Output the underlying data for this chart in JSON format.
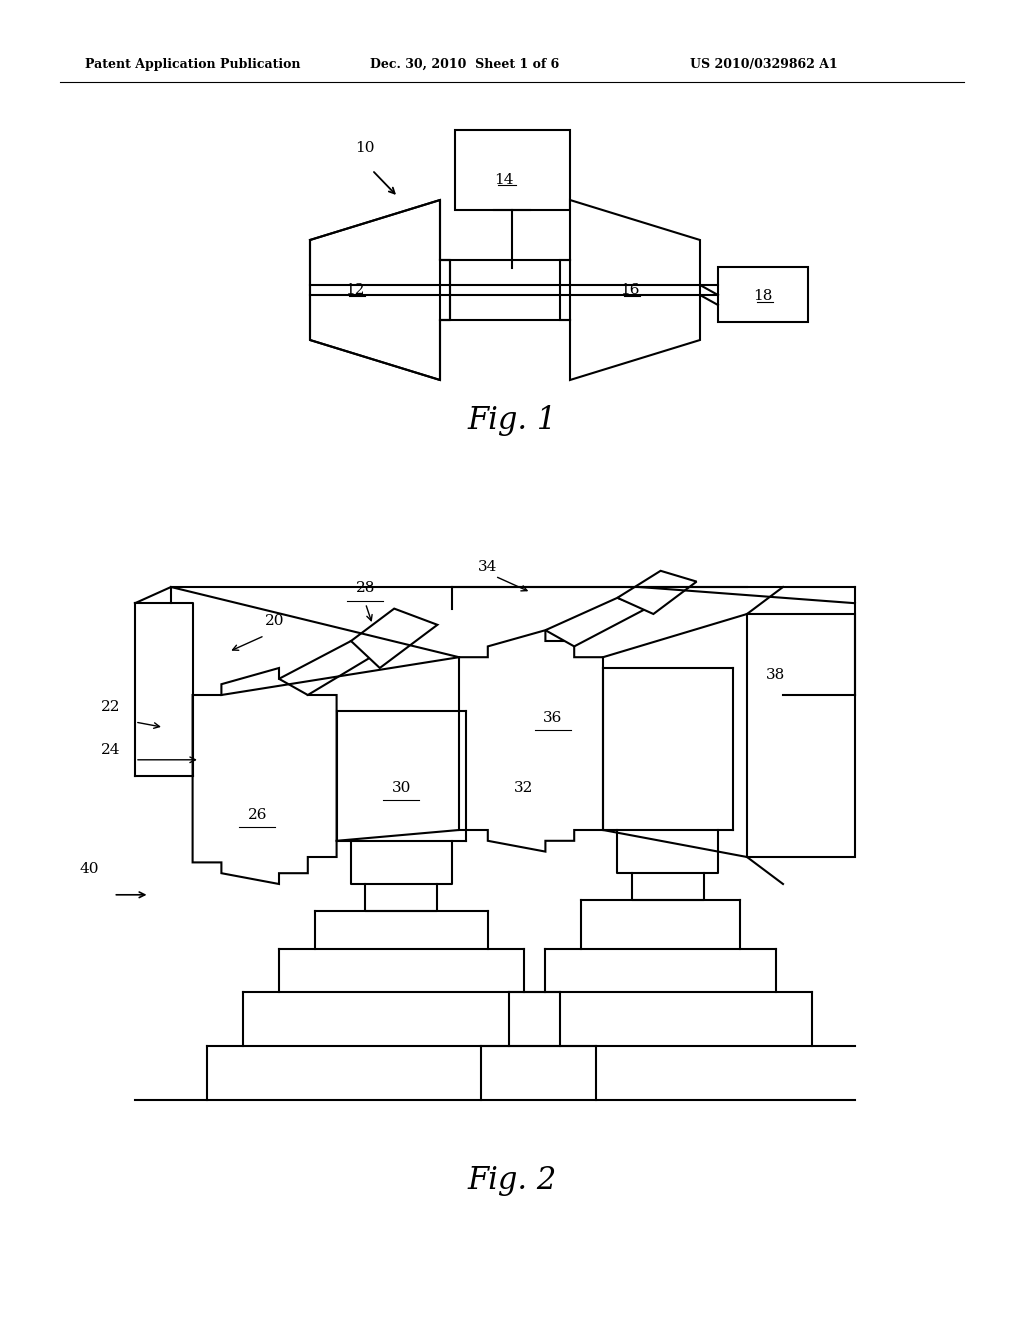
{
  "background_color": "#ffffff",
  "header_left": "Patent Application Publication",
  "header_mid": "Dec. 30, 2010  Sheet 1 of 6",
  "header_right": "US 2010/0329862 A1",
  "fig1_caption": "Fig. 1",
  "fig2_caption": "Fig. 2",
  "label_10": "10",
  "label_12": "12",
  "label_14": "14",
  "label_16": "16",
  "label_18": "18",
  "label_20": "20",
  "label_22": "22",
  "label_24": "24",
  "label_26": "26",
  "label_28": "28",
  "label_30": "30",
  "label_32": "32",
  "label_34": "34",
  "label_36": "36",
  "label_38": "38",
  "label_40": "40",
  "line_color": "#000000",
  "text_color": "#000000"
}
